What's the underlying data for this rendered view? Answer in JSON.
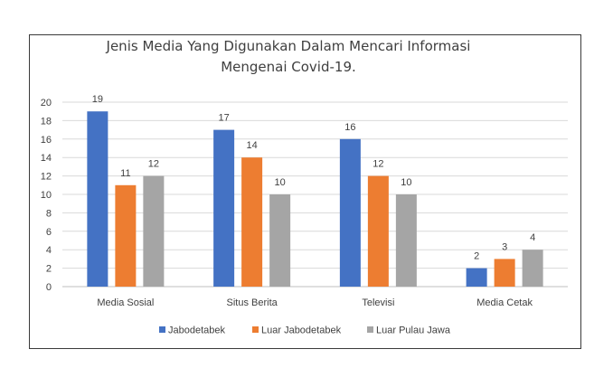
{
  "chart_data": {
    "type": "bar",
    "title_lines": [
      "Jenis Media Yang Digunakan Dalam Mencari Informasi",
      "Mengenai Covid-19."
    ],
    "categories": [
      "Media Sosial",
      "Situs Berita",
      "Televisi",
      "Media Cetak"
    ],
    "series": [
      {
        "name": "Jabodetabek",
        "values": [
          19,
          17,
          16,
          2
        ],
        "color": "#4472c4"
      },
      {
        "name": "Luar Jabodetabek",
        "values": [
          11,
          14,
          12,
          3
        ],
        "color": "#ed7d31"
      },
      {
        "name": "Luar Pulau Jawa",
        "values": [
          12,
          10,
          10,
          4
        ],
        "color": "#a5a5a5"
      }
    ],
    "ylim": [
      0,
      20
    ],
    "yticks": [
      0,
      2,
      4,
      6,
      8,
      10,
      12,
      14,
      16,
      18,
      20
    ],
    "grid": true,
    "legend_position": "bottom",
    "xlabel": "",
    "ylabel": ""
  }
}
